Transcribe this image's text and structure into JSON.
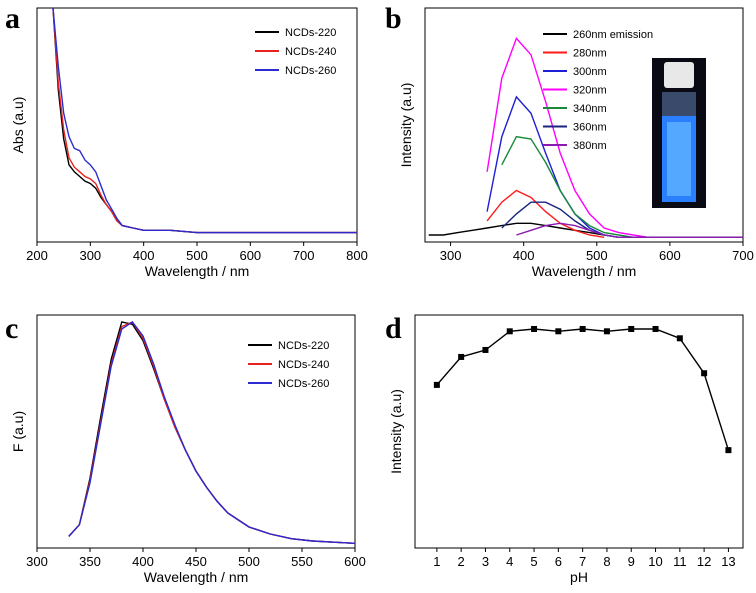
{
  "chart_data": [
    {
      "type": "line",
      "label": "a",
      "xlabel": "Wavelength / nm",
      "ylabel": "Abs (a.u)",
      "xlim": [
        200,
        800
      ],
      "xticks": [
        200,
        300,
        400,
        500,
        600,
        700,
        800
      ],
      "ylim": [
        0,
        1
      ],
      "legend": "upper right",
      "x": [
        230,
        240,
        250,
        260,
        270,
        280,
        290,
        300,
        310,
        320,
        330,
        340,
        350,
        360,
        380,
        400,
        450,
        500,
        600,
        700,
        800
      ],
      "series": [
        {
          "name": "NCDs-220",
          "color": "#000000",
          "values": [
            1.0,
            0.65,
            0.44,
            0.33,
            0.3,
            0.28,
            0.26,
            0.25,
            0.23,
            0.19,
            0.16,
            0.13,
            0.09,
            0.07,
            0.06,
            0.05,
            0.05,
            0.04,
            0.04,
            0.04,
            0.04
          ]
        },
        {
          "name": "NCDs-240",
          "color": "#e8231f",
          "values": [
            1.0,
            0.68,
            0.48,
            0.36,
            0.32,
            0.3,
            0.28,
            0.27,
            0.25,
            0.2,
            0.16,
            0.13,
            0.09,
            0.07,
            0.06,
            0.05,
            0.05,
            0.04,
            0.04,
            0.04,
            0.04
          ]
        },
        {
          "name": "NCDs-260",
          "color": "#2b2bd1",
          "values": [
            1.0,
            0.75,
            0.55,
            0.45,
            0.4,
            0.39,
            0.35,
            0.33,
            0.3,
            0.24,
            0.18,
            0.14,
            0.1,
            0.07,
            0.06,
            0.05,
            0.05,
            0.04,
            0.04,
            0.04,
            0.04
          ]
        }
      ]
    },
    {
      "type": "line",
      "label": "b",
      "xlabel": "Wavelength / nm",
      "ylabel": "Intensity (a.u)",
      "xlim": [
        265,
        700
      ],
      "xticks": [
        300,
        400,
        500,
        600,
        700
      ],
      "ylim": [
        0,
        1
      ],
      "legend": "upper right",
      "x": [
        270,
        290,
        310,
        330,
        350,
        370,
        390,
        410,
        430,
        450,
        470,
        490,
        510,
        530,
        550,
        570,
        590,
        610,
        630,
        650,
        670,
        690,
        700
      ],
      "series": [
        {
          "name": "260nm emission",
          "color": "#000000",
          "values": [
            0.03,
            0.03,
            0.04,
            0.05,
            0.06,
            0.07,
            0.08,
            0.08,
            0.07,
            0.06,
            0.05,
            0.04,
            0.03,
            null,
            null,
            null,
            null,
            null,
            null,
            null,
            null,
            null,
            null
          ]
        },
        {
          "name": "280nm",
          "color": "#ff1a1a",
          "values": [
            null,
            null,
            null,
            null,
            0.09,
            0.17,
            0.22,
            0.19,
            0.13,
            0.08,
            0.05,
            0.03,
            0.02,
            null,
            null,
            null,
            null,
            null,
            null,
            null,
            null,
            null,
            null
          ]
        },
        {
          "name": "300nm",
          "color": "#1f1fd6",
          "values": [
            null,
            null,
            null,
            null,
            0.13,
            0.45,
            0.62,
            0.55,
            0.38,
            0.22,
            0.12,
            0.06,
            0.03,
            0.02,
            0.02,
            0.02,
            0.02,
            0.02,
            0.02,
            0.02,
            0.02,
            0.02,
            0.02
          ]
        },
        {
          "name": "320nm",
          "color": "#ff00ff",
          "values": [
            null,
            null,
            null,
            null,
            0.3,
            0.7,
            0.87,
            0.8,
            0.6,
            0.38,
            0.22,
            0.12,
            0.06,
            0.04,
            0.03,
            0.02,
            0.02,
            0.02,
            0.02,
            0.02,
            0.02,
            0.02,
            0.02
          ]
        },
        {
          "name": "340nm",
          "color": "#1a8a3a",
          "values": [
            null,
            null,
            null,
            null,
            null,
            0.33,
            0.45,
            0.44,
            0.34,
            0.22,
            0.12,
            0.07,
            0.04,
            0.03,
            0.02,
            0.02,
            0.02,
            0.02,
            0.02,
            0.02,
            0.02,
            0.02,
            0.02
          ]
        },
        {
          "name": "360nm",
          "color": "#1a237e",
          "values": [
            null,
            null,
            null,
            null,
            null,
            0.06,
            0.12,
            0.17,
            0.17,
            0.14,
            0.09,
            0.05,
            0.03,
            0.02,
            0.02,
            0.02,
            0.02,
            0.02,
            0.02,
            0.02,
            0.02,
            0.02,
            0.02
          ]
        },
        {
          "name": "380nm",
          "color": "#8a1ab0",
          "values": [
            null,
            null,
            null,
            null,
            null,
            null,
            0.03,
            0.05,
            0.07,
            0.08,
            0.07,
            0.05,
            0.03,
            0.02,
            0.02,
            0.02,
            0.02,
            0.02,
            0.02,
            0.02,
            0.02,
            0.02,
            0.02
          ]
        }
      ]
    },
    {
      "type": "line",
      "label": "c",
      "xlabel": "Wavelength / nm",
      "ylabel": "F (a.u)",
      "xlim": [
        300,
        600
      ],
      "xticks": [
        300,
        350,
        400,
        450,
        500,
        550,
        600
      ],
      "ylim": [
        0,
        1
      ],
      "legend": "upper right",
      "x": [
        330,
        340,
        350,
        360,
        370,
        380,
        390,
        400,
        410,
        420,
        430,
        440,
        450,
        460,
        470,
        480,
        490,
        500,
        520,
        540,
        560,
        580,
        600
      ],
      "series": [
        {
          "name": "NCDs-220",
          "color": "#000000",
          "values": [
            0.05,
            0.1,
            0.3,
            0.56,
            0.81,
            0.97,
            0.96,
            0.89,
            0.77,
            0.64,
            0.52,
            0.42,
            0.33,
            0.26,
            0.2,
            0.15,
            0.12,
            0.09,
            0.06,
            0.04,
            0.03,
            0.025,
            0.02
          ]
        },
        {
          "name": "NCDs-240",
          "color": "#e8231f",
          "values": [
            0.05,
            0.1,
            0.29,
            0.54,
            0.79,
            0.95,
            0.97,
            0.9,
            0.78,
            0.64,
            0.52,
            0.42,
            0.33,
            0.26,
            0.2,
            0.15,
            0.12,
            0.09,
            0.06,
            0.04,
            0.03,
            0.025,
            0.02
          ]
        },
        {
          "name": "NCDs-260",
          "color": "#2b2bd1",
          "values": [
            0.05,
            0.1,
            0.28,
            0.53,
            0.78,
            0.94,
            0.97,
            0.91,
            0.79,
            0.65,
            0.53,
            0.42,
            0.33,
            0.26,
            0.2,
            0.15,
            0.12,
            0.09,
            0.06,
            0.04,
            0.03,
            0.025,
            0.02
          ]
        }
      ]
    },
    {
      "type": "line",
      "label": "d",
      "xlabel": "pH",
      "ylabel": "Intensity (a.u)",
      "marker": "square",
      "color": "#000000",
      "xlim": [
        0.1,
        13.6
      ],
      "xticks": [
        1,
        2,
        3,
        4,
        5,
        6,
        7,
        8,
        9,
        10,
        11,
        12,
        13
      ],
      "ylim": [
        0,
        1
      ],
      "x": [
        1,
        2,
        3,
        4,
        5,
        6,
        7,
        8,
        9,
        10,
        11,
        12,
        13
      ],
      "values": [
        0.7,
        0.82,
        0.85,
        0.93,
        0.94,
        0.93,
        0.94,
        0.93,
        0.94,
        0.94,
        0.9,
        0.75,
        0.42
      ]
    }
  ]
}
